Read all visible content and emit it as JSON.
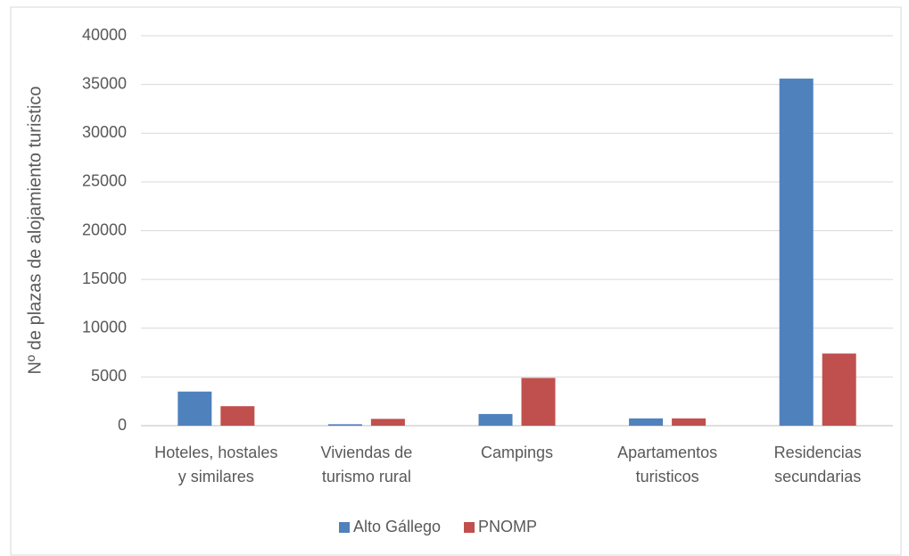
{
  "chart_data": {
    "type": "bar",
    "y_axis_label": "Nº de plazas de alojamiento turistico",
    "categories": [
      "Hoteles, hostales y similares",
      "Viviendas de turismo rural",
      "Campings",
      "Apartamentos turisticos",
      "Residencias secundarias"
    ],
    "series": [
      {
        "name": "Alto Gállego",
        "color": "#4f81bd",
        "values": [
          3500,
          150,
          1200,
          750,
          35600
        ]
      },
      {
        "name": "PNOMP",
        "color": "#c0504d",
        "values": [
          2000,
          700,
          4900,
          750,
          7400
        ]
      }
    ],
    "ylim": [
      0,
      40000
    ],
    "yticks": [
      0,
      5000,
      10000,
      15000,
      20000,
      25000,
      30000,
      35000,
      40000
    ],
    "grid": true,
    "legend": "bottom"
  }
}
